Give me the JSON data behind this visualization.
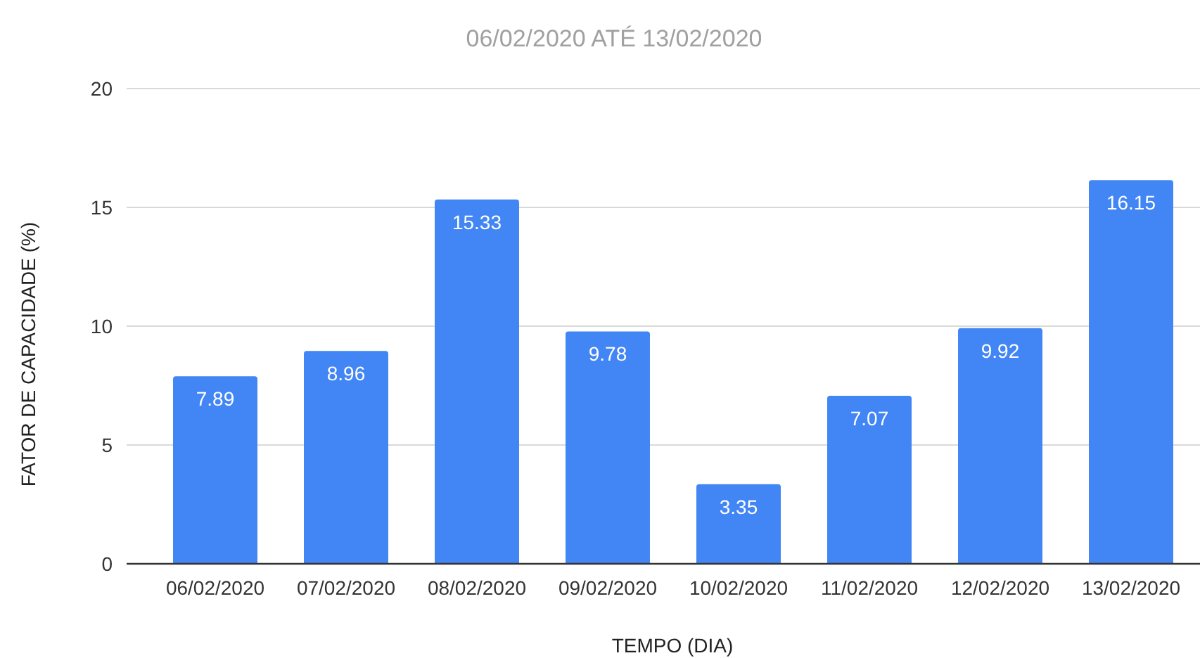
{
  "chart_data": {
    "type": "bar",
    "title": "06/02/2020 ATÉ 13/02/2020",
    "xlabel": "TEMPO (DIA)",
    "ylabel": "FATOR DE CAPACIDADE (%)",
    "categories": [
      "06/02/2020",
      "07/02/2020",
      "08/02/2020",
      "09/02/2020",
      "10/02/2020",
      "11/02/2020",
      "12/02/2020",
      "13/02/2020"
    ],
    "values": [
      7.89,
      8.96,
      15.33,
      9.78,
      3.35,
      7.07,
      9.92,
      16.15
    ],
    "color": "#4285f4",
    "ylim": [
      0,
      20
    ],
    "yticks": [
      0,
      5,
      10,
      15,
      20
    ],
    "grid": "y",
    "data_labels": true
  }
}
